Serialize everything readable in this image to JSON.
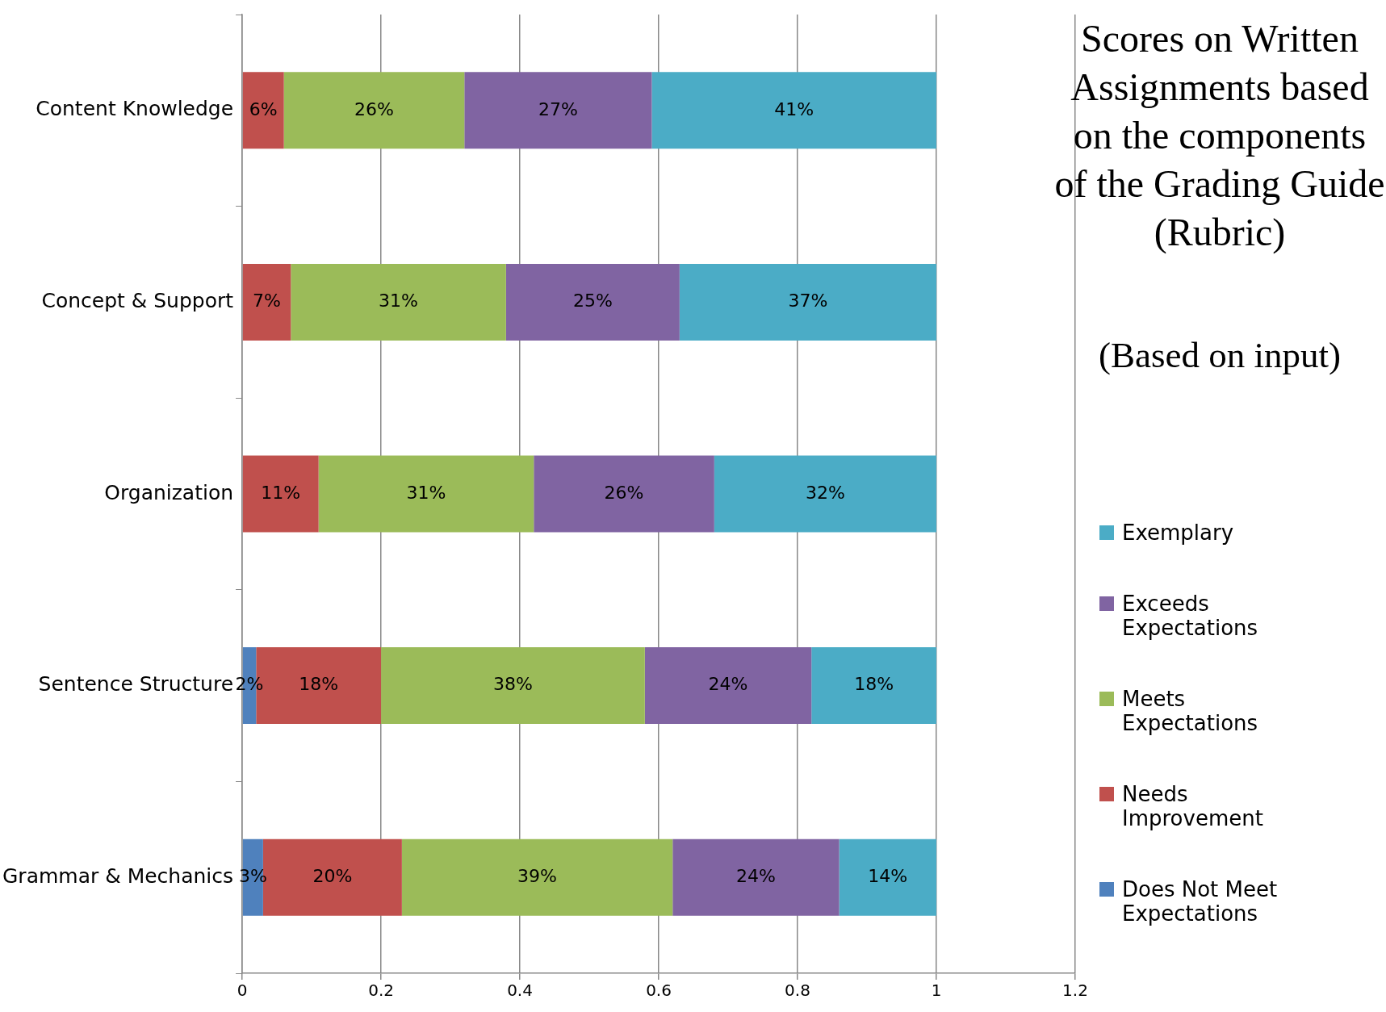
{
  "chart_data": {
    "type": "bar",
    "orientation": "horizontal",
    "stacked": true,
    "title": "Scores  on Written Assignments based on the components of the Grading Guide (Rubric)",
    "subtitle": "(Based on input)",
    "categories": [
      "Content Knowledge",
      "Concept & Support",
      "Organization",
      "Sentence Structure",
      "Grammar & Mechanics"
    ],
    "series": [
      {
        "name": "Does Not Meet Expectations",
        "color": "#4f81bd",
        "values": [
          null,
          null,
          null,
          0.02,
          0.03
        ],
        "value_labels": [
          null,
          null,
          null,
          "2%",
          "3%"
        ]
      },
      {
        "name": "Needs Improvement",
        "color": "#c0504d",
        "values": [
          0.06,
          0.07,
          0.11,
          0.18,
          0.2
        ],
        "value_labels": [
          "6%",
          "7%",
          "11%",
          "18%",
          "20%"
        ]
      },
      {
        "name": "Meets Expectations",
        "color": "#9bbb59",
        "values": [
          0.26,
          0.31,
          0.31,
          0.38,
          0.39
        ],
        "value_labels": [
          "26%",
          "31%",
          "31%",
          "38%",
          "39%"
        ]
      },
      {
        "name": "Exceeds Expectations",
        "color": "#8064a2",
        "values": [
          0.27,
          0.25,
          0.26,
          0.24,
          0.24
        ],
        "value_labels": [
          "27%",
          "25%",
          "26%",
          "24%",
          "24%"
        ]
      },
      {
        "name": "Exemplary",
        "color": "#4bacc6",
        "values": [
          0.41,
          0.37,
          0.32,
          0.18,
          0.14
        ],
        "value_labels": [
          "41%",
          "37%",
          "32%",
          "18%",
          "14%"
        ]
      }
    ],
    "xlim": [
      0,
      1.2
    ],
    "xticks": [
      0,
      0.2,
      0.4,
      0.6,
      0.8,
      1,
      1.2
    ],
    "grid": "x",
    "legend": "right"
  }
}
